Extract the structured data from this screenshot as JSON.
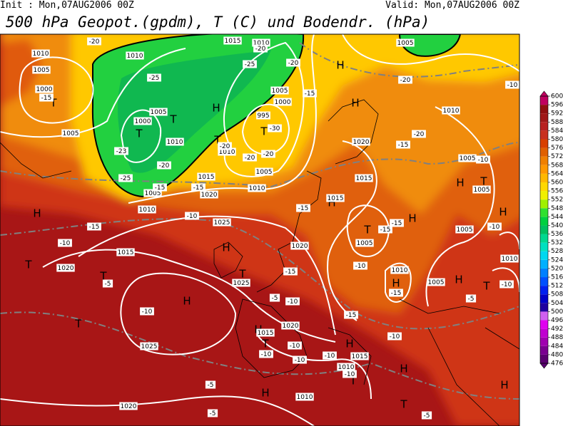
{
  "header": {
    "init": "Init : Mon,07AUG2006 00Z",
    "valid": "Valid: Mon,07AUG2006 00Z",
    "title": "500 hPa Geopot.(gpdm), T (C) und Bodendr. (hPa)"
  },
  "map": {
    "pressure_centers": [
      "T",
      "T",
      "T",
      "H",
      "T",
      "T",
      "H",
      "H",
      "H",
      "T",
      "T",
      "H",
      "T",
      "H",
      "T",
      "H",
      "T",
      "H",
      "H",
      "T",
      "H",
      "H",
      "H",
      "T",
      "H",
      "T",
      "H",
      "T",
      "H",
      "H",
      "T",
      "H"
    ],
    "isobar_labels": [
      "1010",
      "1005",
      "1000",
      "1005",
      "1010",
      "1005",
      "1000",
      "1010",
      "1015",
      "1010",
      "1005",
      "1000",
      "995",
      "1010",
      "1005",
      "1010",
      "1015",
      "1020",
      "1005",
      "1010",
      "1025",
      "1015",
      "1020",
      "1025",
      "1020",
      "1015",
      "1020",
      "1015",
      "1005",
      "1010",
      "1005",
      "1005",
      "1005",
      "1005",
      "1010",
      "1005",
      "1010",
      "1015",
      "1020",
      "1025",
      "1015",
      "1010",
      "1010",
      "1020"
    ],
    "temperature_labels": [
      "-15",
      "-20",
      "-25",
      "-25",
      "-23",
      "-20",
      "-20",
      "-25",
      "-20",
      "-30",
      "-20",
      "-20",
      "-20",
      "-15",
      "-20",
      "-15",
      "-20",
      "-10",
      "-15",
      "-15",
      "-15",
      "-10",
      "-15",
      "-10",
      "-5",
      "-5",
      "-10",
      "-15",
      "-15",
      "-15",
      "-15",
      "-10",
      "-10",
      "-15",
      "-10",
      "-5",
      "-10",
      "-10",
      "-10",
      "-10",
      "-10",
      "-10",
      "-5",
      "-5",
      "-5",
      "-10",
      "-10"
    ]
  },
  "colorbar": {
    "ticks": [
      476,
      480,
      484,
      488,
      492,
      496,
      500,
      504,
      508,
      512,
      516,
      520,
      524,
      528,
      532,
      536,
      540,
      544,
      548,
      552,
      556,
      560,
      564,
      568,
      572,
      576,
      580,
      584,
      588,
      592,
      596,
      600
    ],
    "colors": [
      "#5a0070",
      "#7a0090",
      "#a000b0",
      "#c000d0",
      "#e000f0",
      "#d060f0",
      "#2000a0",
      "#0000c8",
      "#0020f0",
      "#0050ff",
      "#0080ff",
      "#00b0ff",
      "#00d8f0",
      "#00e0c0",
      "#00d890",
      "#00c060",
      "#00d040",
      "#30e030",
      "#a0f000",
      "#f0f000",
      "#ffd800",
      "#ffb800",
      "#ff9800",
      "#f08000",
      "#e06000",
      "#d84000",
      "#c83020",
      "#b82020",
      "#a01818",
      "#901010",
      "#c00060"
    ]
  }
}
